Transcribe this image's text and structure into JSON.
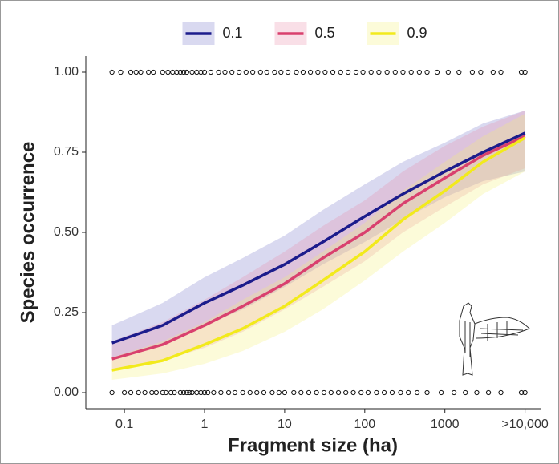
{
  "chart_data": {
    "type": "line",
    "xlabel": "Fragment size (ha)",
    "ylabel": "Species occurrence",
    "xscale": "log",
    "xlim": [
      0.033,
      16000
    ],
    "ylim": [
      -0.05,
      1.05
    ],
    "xticks": [
      0.1,
      1,
      10,
      100,
      1000,
      {
        "value": 10000,
        "label": ">10,000"
      }
    ],
    "yticks": [
      {
        "value": 0,
        "label": "0.00"
      },
      {
        "value": 0.25,
        "label": "0.25"
      },
      {
        "value": 0.5,
        "label": "0.50"
      },
      {
        "value": 0.75,
        "label": "0.75"
      },
      {
        "value": 1,
        "label": "1.00"
      }
    ],
    "legend": "top",
    "x": [
      0.07,
      0.3,
      1,
      3,
      10,
      30,
      100,
      300,
      1000,
      3000,
      10000
    ],
    "series": [
      {
        "name": "0.1",
        "color": "#1c1c8c",
        "fill": "rgba(120,120,200,0.28)",
        "values": [
          0.155,
          0.21,
          0.28,
          0.335,
          0.4,
          0.47,
          0.55,
          0.62,
          0.69,
          0.75,
          0.81
        ],
        "lower": [
          0.11,
          0.15,
          0.21,
          0.26,
          0.33,
          0.4,
          0.47,
          0.54,
          0.61,
          0.66,
          0.69
        ],
        "upper": [
          0.21,
          0.28,
          0.36,
          0.42,
          0.49,
          0.57,
          0.65,
          0.72,
          0.78,
          0.84,
          0.88
        ]
      },
      {
        "name": "0.5",
        "color": "#d9406e",
        "fill": "rgba(235,140,170,0.28)",
        "values": [
          0.105,
          0.15,
          0.21,
          0.27,
          0.34,
          0.42,
          0.5,
          0.59,
          0.67,
          0.74,
          0.8
        ],
        "lower": [
          0.07,
          0.1,
          0.14,
          0.19,
          0.26,
          0.33,
          0.41,
          0.5,
          0.58,
          0.65,
          0.7
        ],
        "upper": [
          0.16,
          0.22,
          0.29,
          0.36,
          0.44,
          0.52,
          0.6,
          0.69,
          0.77,
          0.83,
          0.88
        ]
      },
      {
        "name": "0.9",
        "color": "#f2ea1c",
        "fill": "rgba(245,240,120,0.28)",
        "values": [
          0.07,
          0.1,
          0.15,
          0.2,
          0.27,
          0.35,
          0.44,
          0.54,
          0.63,
          0.72,
          0.795
        ],
        "lower": [
          0.04,
          0.06,
          0.09,
          0.13,
          0.19,
          0.26,
          0.35,
          0.44,
          0.53,
          0.62,
          0.69
        ],
        "upper": [
          0.11,
          0.16,
          0.22,
          0.29,
          0.36,
          0.44,
          0.53,
          0.63,
          0.72,
          0.8,
          0.87
        ]
      }
    ],
    "points": [
      {
        "y": 1,
        "x": [
          0.07,
          0.09,
          0.12,
          0.14,
          0.16,
          0.2,
          0.23,
          0.3,
          0.35,
          0.4,
          0.45,
          0.5,
          0.55,
          0.6,
          0.7,
          0.8,
          0.9,
          1,
          1.2,
          1.5,
          1.8,
          2.2,
          2.7,
          3.3,
          4,
          5,
          6,
          7.5,
          9,
          11,
          14,
          17,
          21,
          26,
          32,
          40,
          50,
          62,
          78,
          95,
          120,
          150,
          190,
          240,
          300,
          380,
          480,
          600,
          800,
          1100,
          1500,
          2200,
          2800,
          4000,
          5000,
          9000,
          10000
        ]
      },
      {
        "y": 0,
        "x": [
          0.07,
          0.1,
          0.12,
          0.15,
          0.18,
          0.22,
          0.25,
          0.3,
          0.33,
          0.38,
          0.42,
          0.5,
          0.55,
          0.6,
          0.65,
          0.7,
          0.8,
          0.9,
          1,
          1.1,
          1.3,
          1.6,
          2,
          2.4,
          3,
          3.7,
          4.5,
          5.5,
          7,
          8.5,
          10,
          13,
          16,
          20,
          25,
          31,
          38,
          47,
          58,
          72,
          90,
          110,
          140,
          175,
          220,
          280,
          350,
          450,
          600,
          900,
          1300,
          1800,
          2500,
          3500,
          5000,
          9000,
          10000
        ]
      }
    ]
  }
}
